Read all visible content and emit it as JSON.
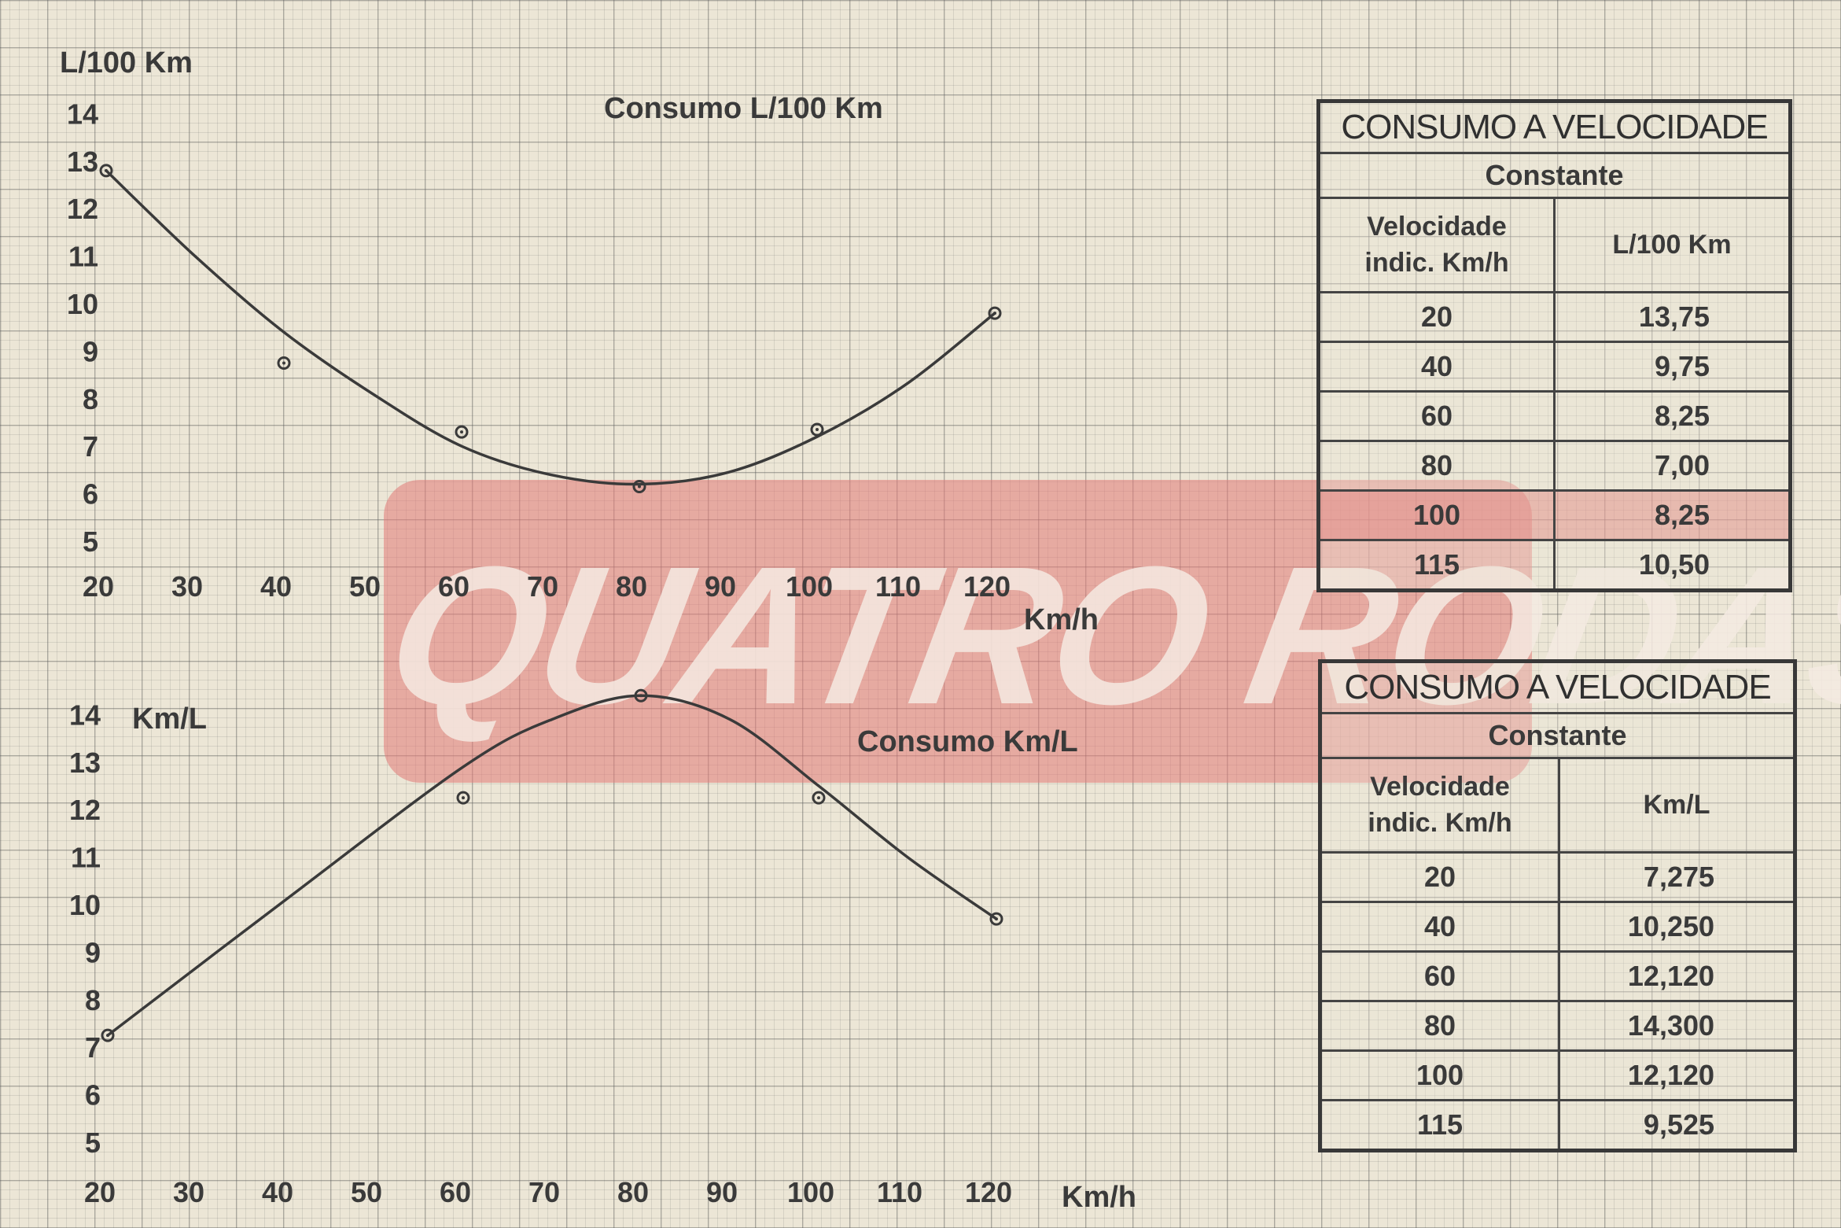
{
  "chart_data": [
    {
      "type": "line",
      "title": "Consumo   L/100 Km",
      "ylabel": "L/100 Km",
      "xlabel": "Km/h",
      "xlim": [
        20,
        120
      ],
      "ylim": [
        5,
        14
      ],
      "x_ticks": [
        "20",
        "30",
        "40",
        "50",
        "60",
        "70",
        "80",
        "90",
        "100",
        "110",
        "120"
      ],
      "y_ticks": [
        "14",
        "13",
        "12",
        "11",
        "10",
        "9",
        "8",
        "7",
        "6",
        "5"
      ],
      "series": [
        {
          "points": [
            [
              20,
              12.8
            ],
            [
              40,
              8.75
            ],
            [
              60,
              7.3
            ],
            [
              80,
              6.15
            ],
            [
              100,
              7.35
            ],
            [
              120,
              9.8
            ]
          ],
          "curve": [
            [
              20,
              12.8
            ],
            [
              30,
              11.0
            ],
            [
              40,
              9.4
            ],
            [
              50,
              8.1
            ],
            [
              60,
              7.0
            ],
            [
              70,
              6.4
            ],
            [
              80,
              6.2
            ],
            [
              90,
              6.45
            ],
            [
              100,
              7.2
            ],
            [
              110,
              8.3
            ],
            [
              120,
              9.8
            ]
          ]
        }
      ],
      "grid": true
    },
    {
      "type": "line",
      "title": "Consumo   Km/L",
      "ylabel": "Km/L",
      "xlabel": "Km/h",
      "xlim": [
        20,
        120
      ],
      "ylim": [
        5,
        14
      ],
      "x_ticks": [
        "20",
        "30",
        "40",
        "50",
        "60",
        "70",
        "80",
        "90",
        "100",
        "110",
        "120"
      ],
      "y_ticks": [
        "14",
        "13",
        "12",
        "11",
        "10",
        "9",
        "8",
        "7",
        "6",
        "5"
      ],
      "series": [
        {
          "points": [
            [
              20,
              7.25
            ],
            [
              60,
              12.25
            ],
            [
              80,
              14.4
            ],
            [
              100,
              12.25
            ],
            [
              120,
              9.7
            ]
          ],
          "curve": [
            [
              20,
              7.25
            ],
            [
              40,
              10.1
            ],
            [
              60,
              12.9
            ],
            [
              70,
              13.9
            ],
            [
              80,
              14.4
            ],
            [
              90,
              13.9
            ],
            [
              100,
              12.5
            ],
            [
              110,
              11.0
            ],
            [
              120,
              9.7
            ]
          ]
        }
      ],
      "grid": true
    }
  ],
  "tables": [
    {
      "title": "CONSUMO A VELOCIDADE",
      "subtitle": "Constante",
      "col1": [
        "Velocidade",
        "indic.  Km/h"
      ],
      "col2": "L/100 Km",
      "rows": [
        [
          "20",
          "13,75"
        ],
        [
          "40",
          "9,75"
        ],
        [
          "60",
          "8,25"
        ],
        [
          "80",
          "7,00"
        ],
        [
          "100",
          "8,25"
        ],
        [
          "115",
          "10,50"
        ]
      ]
    },
    {
      "title": "CONSUMO A VELOCIDADE",
      "subtitle": "Constante",
      "col1": [
        "Velocidade",
        "indic.  Km/h"
      ],
      "col2": "Km/L",
      "rows": [
        [
          "20",
          "7,275"
        ],
        [
          "40",
          "10,250"
        ],
        [
          "60",
          "12,120"
        ],
        [
          "80",
          "14,300"
        ],
        [
          "100",
          "12,120"
        ],
        [
          "115",
          "9,525"
        ]
      ]
    }
  ],
  "watermark": "QUATRO RODAS",
  "colors": {
    "ink": "#3a3a3a",
    "paper": "#ece6d6",
    "watermark": "#e27876"
  }
}
